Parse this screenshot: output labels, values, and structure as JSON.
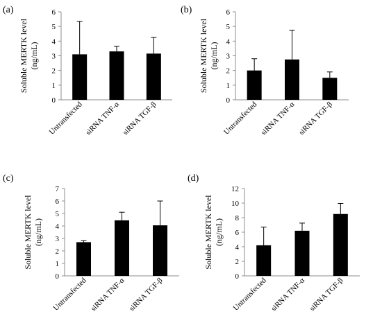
{
  "figure": {
    "panels": [
      {
        "label": "(a)"
      },
      {
        "label": "(b)"
      },
      {
        "label": "(c)"
      },
      {
        "label": "(d)"
      }
    ]
  },
  "chart_data": [
    {
      "type": "bar",
      "panel": "(a)",
      "ylabel": "Soluble MERTK level\n(ng/mL)",
      "categories": [
        "Untransfected",
        "siRNA TNF-α",
        "siRNA TGF-β"
      ],
      "values": [
        3.1,
        3.3,
        3.15
      ],
      "error_up": [
        2.25,
        0.35,
        1.1
      ],
      "ylim": [
        0,
        6
      ],
      "yticks": [
        0,
        1,
        2,
        3,
        4,
        5,
        6
      ],
      "grid": false
    },
    {
      "type": "bar",
      "panel": "(b)",
      "ylabel": "Soluble MERTK level\n(ng/mL)",
      "categories": [
        "Untransfected",
        "siRNA TNF-α",
        "siRNA TGF-β"
      ],
      "values": [
        2.0,
        2.75,
        1.5
      ],
      "error_up": [
        0.8,
        2.0,
        0.4
      ],
      "ylim": [
        0,
        6
      ],
      "yticks": [
        0,
        1,
        2,
        3,
        4,
        5,
        6
      ],
      "grid": false
    },
    {
      "type": "bar",
      "panel": "(c)",
      "ylabel": "Soluble MERTK level\n(ng/mL)",
      "categories": [
        "Untransfected",
        "siRNA TNF-α",
        "siRNA TGF-β"
      ],
      "values": [
        2.7,
        4.45,
        4.05
      ],
      "error_up": [
        0.12,
        0.65,
        1.95
      ],
      "ylim": [
        0,
        7
      ],
      "yticks": [
        0,
        1,
        2,
        3,
        4,
        5,
        6,
        7
      ],
      "grid": false
    },
    {
      "type": "bar",
      "panel": "(d)",
      "ylabel": "Soluble MERTK level\n(ng/mL)",
      "categories": [
        "Untransfected",
        "siRNA TNF-α",
        "siRNA TGF-β"
      ],
      "values": [
        4.2,
        6.2,
        8.5
      ],
      "error_up": [
        2.5,
        1.05,
        1.45
      ],
      "ylim": [
        0,
        12
      ],
      "yticks": [
        0,
        2,
        4,
        6,
        8,
        10,
        12
      ],
      "grid": false
    }
  ]
}
